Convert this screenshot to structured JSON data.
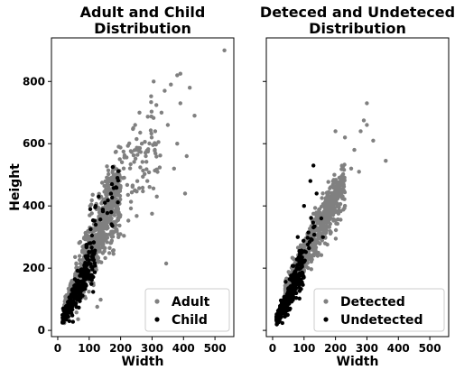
{
  "chart_data": [
    {
      "type": "scatter",
      "title_lines": [
        "Adult and Child",
        "Distribution"
      ],
      "xlabel": "Width",
      "ylabel": "Height",
      "xlim": [
        -20,
        560
      ],
      "ylim": [
        -20,
        940
      ],
      "xticks": [
        0,
        100,
        200,
        300,
        400,
        500
      ],
      "yticks": [
        0,
        200,
        400,
        600,
        800
      ],
      "legend_position": "lower-right",
      "series": [
        {
          "name": "Adult",
          "color": "#808080",
          "cloud": [
            {
              "n": 900,
              "x_range": [
                20,
                200
              ],
              "y_at_x": [
                [
                  20,
                  60
                ],
                [
                  100,
                  250
                ],
                [
                  200,
                  450
                ]
              ],
              "spread": [
                [
                  20,
                  25
                ],
                [
                  100,
                  90
                ],
                [
                  200,
                  120
                ]
              ]
            },
            {
              "n": 150,
              "x_range": [
                150,
                330
              ],
              "y_at_x": [
                [
                  150,
                  420
                ],
                [
                  330,
                  600
                ]
              ],
              "spread": [
                [
                  150,
                  110
                ],
                [
                  330,
                  140
                ]
              ]
            }
          ],
          "points": [
            {
              "x": 530,
              "y": 900
            },
            {
              "x": 420,
              "y": 780
            },
            {
              "x": 390,
              "y": 825
            },
            {
              "x": 380,
              "y": 820
            },
            {
              "x": 360,
              "y": 790
            },
            {
              "x": 340,
              "y": 770
            },
            {
              "x": 305,
              "y": 800
            },
            {
              "x": 435,
              "y": 690
            },
            {
              "x": 410,
              "y": 560
            },
            {
              "x": 405,
              "y": 440
            },
            {
              "x": 345,
              "y": 215
            },
            {
              "x": 300,
              "y": 375
            },
            {
              "x": 330,
              "y": 700
            },
            {
              "x": 310,
              "y": 640
            },
            {
              "x": 260,
              "y": 700
            },
            {
              "x": 280,
              "y": 560
            },
            {
              "x": 240,
              "y": 650
            },
            {
              "x": 380,
              "y": 600
            },
            {
              "x": 350,
              "y": 660
            },
            {
              "x": 390,
              "y": 730
            },
            {
              "x": 315,
              "y": 430
            },
            {
              "x": 285,
              "y": 480
            },
            {
              "x": 370,
              "y": 520
            }
          ]
        },
        {
          "name": "Child",
          "color": "#000000",
          "cloud": [
            {
              "n": 260,
              "x_range": [
                15,
                120
              ],
              "y_at_x": [
                [
                  15,
                  35
                ],
                [
                  60,
                  120
                ],
                [
                  120,
                  250
                ]
              ],
              "spread": [
                [
                  15,
                  15
                ],
                [
                  60,
                  50
                ],
                [
                  120,
                  80
                ]
              ]
            },
            {
              "n": 25,
              "x_range": [
                90,
                200
              ],
              "y_at_x": [
                [
                  90,
                  300
                ],
                [
                  200,
                  480
                ]
              ],
              "spread": [
                [
                  90,
                  70
                ],
                [
                  200,
                  80
                ]
              ]
            }
          ],
          "points": [
            {
              "x": 190,
              "y": 490
            },
            {
              "x": 185,
              "y": 460
            },
            {
              "x": 175,
              "y": 525
            },
            {
              "x": 130,
              "y": 430
            },
            {
              "x": 150,
              "y": 410
            },
            {
              "x": 120,
              "y": 400
            },
            {
              "x": 170,
              "y": 380
            }
          ]
        }
      ]
    },
    {
      "type": "scatter",
      "title_lines": [
        "Deteced and Undeteced",
        "Distribution"
      ],
      "xlabel": "Width",
      "ylabel": "",
      "xlim": [
        -20,
        560
      ],
      "ylim": [
        -20,
        940
      ],
      "xticks": [
        0,
        100,
        200,
        300,
        400,
        500
      ],
      "yticks": [
        0,
        200,
        400,
        600,
        800
      ],
      "legend_position": "lower-right",
      "series": [
        {
          "name": "Detected",
          "color": "#808080",
          "cloud": [
            {
              "n": 800,
              "x_range": [
                40,
                230
              ],
              "y_at_x": [
                [
                  40,
                  110
                ],
                [
                  120,
                  280
                ],
                [
                  230,
                  480
                ]
              ],
              "spread": [
                [
                  40,
                  35
                ],
                [
                  120,
                  60
                ],
                [
                  230,
                  80
                ]
              ]
            }
          ],
          "points": [
            {
              "x": 300,
              "y": 730
            },
            {
              "x": 300,
              "y": 660
            },
            {
              "x": 290,
              "y": 675
            },
            {
              "x": 280,
              "y": 640
            },
            {
              "x": 320,
              "y": 610
            },
            {
              "x": 360,
              "y": 545
            },
            {
              "x": 200,
              "y": 640
            },
            {
              "x": 230,
              "y": 620
            },
            {
              "x": 260,
              "y": 580
            },
            {
              "x": 250,
              "y": 520
            },
            {
              "x": 275,
              "y": 510
            }
          ]
        },
        {
          "name": "Undetected",
          "color": "#000000",
          "cloud": [
            {
              "n": 330,
              "x_range": [
                12,
                100
              ],
              "y_at_x": [
                [
                  12,
                  35
                ],
                [
                  50,
                  100
                ],
                [
                  100,
                  220
                ]
              ],
              "spread": [
                [
                  12,
                  15
                ],
                [
                  50,
                  40
                ],
                [
                  100,
                  70
                ]
              ]
            },
            {
              "n": 30,
              "x_range": [
                60,
                140
              ],
              "y_at_x": [
                [
                  60,
                  180
                ],
                [
                  140,
                  340
                ]
              ],
              "spread": [
                [
                  60,
                  50
                ],
                [
                  140,
                  60
                ]
              ]
            }
          ],
          "points": [
            {
              "x": 130,
              "y": 530
            },
            {
              "x": 120,
              "y": 480
            },
            {
              "x": 140,
              "y": 440
            },
            {
              "x": 100,
              "y": 400
            },
            {
              "x": 155,
              "y": 360
            },
            {
              "x": 160,
              "y": 300
            },
            {
              "x": 80,
              "y": 300
            }
          ]
        }
      ]
    }
  ]
}
